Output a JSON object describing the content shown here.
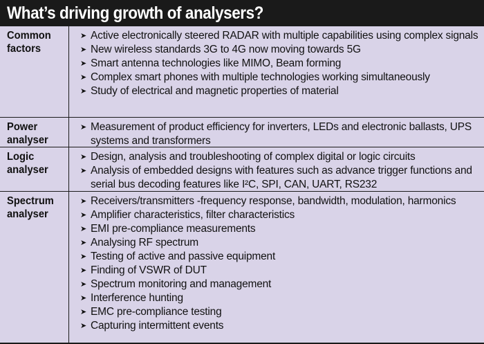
{
  "title": "What’s driving growth of analysers?",
  "rows": [
    {
      "label_line1": "Common",
      "label_line2": "factors",
      "items": [
        "Active electronically steered RADAR with multiple capabilities using complex signals",
        "New wireless standards 3G to 4G now moving towards 5G",
        "Smart antenna technologies like MIMO, Beam forming",
        "Complex smart phones with multiple technologies working simultaneously",
        "Study of electrical and magnetic properties of material"
      ]
    },
    {
      "label_line1": "Power",
      "label_line2": "analyser",
      "items": [
        "Measurement of product efficiency for inverters, LEDs and electronic ballasts, UPS systems and transformers"
      ]
    },
    {
      "label_line1": "Logic",
      "label_line2": "analyser",
      "items": [
        "Design, analysis and troubleshooting of complex digital or logic circuits",
        "Analysis of embedded designs with  features such as advance trigger functions and serial bus decoding features like I²C, SPI, CAN, UART, RS232"
      ]
    },
    {
      "label_line1": "Spectrum",
      "label_line2": "analyser",
      "items": [
        "Receivers/transmitters -frequency response, bandwidth, modulation, harmonics",
        "Amplifier characteristics, filter characteristics",
        "EMI pre-compliance measurements",
        "Analysing RF spectrum",
        "Testing of active and passive equipment",
        "Finding of VSWR of DUT",
        "Spectrum monitoring and management",
        "Interference hunting",
        "EMC pre-compliance testing",
        "Capturing intermittent events"
      ]
    }
  ],
  "icons": {
    "bullet": "arrow-bullet-icon"
  }
}
